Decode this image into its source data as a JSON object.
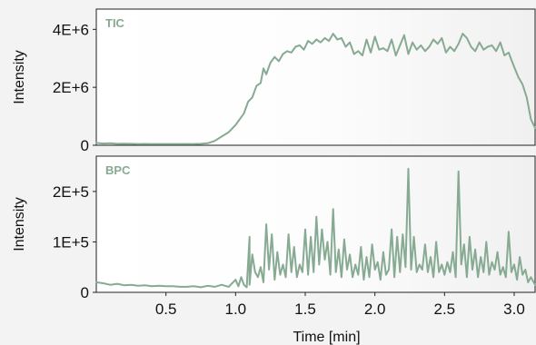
{
  "chart_data": [
    {
      "type": "line",
      "label": "TIC",
      "ylabel": "Intensity",
      "xlabel": "",
      "xlim": [
        0,
        3.15
      ],
      "ylim": [
        0,
        4700000
      ],
      "yticks": [
        {
          "value": 0,
          "label": "0"
        },
        {
          "value": 2000000,
          "label": "2E+6"
        },
        {
          "value": 4000000,
          "label": "4E+6"
        }
      ],
      "xticks": [],
      "color": "#86aa92",
      "x": [
        0.0,
        0.05,
        0.1,
        0.15,
        0.2,
        0.25,
        0.3,
        0.35,
        0.4,
        0.45,
        0.5,
        0.55,
        0.6,
        0.65,
        0.7,
        0.75,
        0.8,
        0.85,
        0.9,
        0.95,
        1.0,
        1.03,
        1.06,
        1.09,
        1.12,
        1.15,
        1.18,
        1.2,
        1.22,
        1.25,
        1.28,
        1.31,
        1.34,
        1.37,
        1.4,
        1.43,
        1.46,
        1.49,
        1.52,
        1.55,
        1.58,
        1.61,
        1.64,
        1.67,
        1.7,
        1.73,
        1.76,
        1.79,
        1.82,
        1.85,
        1.88,
        1.91,
        1.94,
        1.97,
        2.0,
        2.03,
        2.06,
        2.09,
        2.12,
        2.15,
        2.18,
        2.21,
        2.24,
        2.27,
        2.3,
        2.33,
        2.36,
        2.39,
        2.42,
        2.45,
        2.48,
        2.51,
        2.54,
        2.57,
        2.6,
        2.63,
        2.66,
        2.69,
        2.72,
        2.75,
        2.78,
        2.81,
        2.84,
        2.87,
        2.9,
        2.93,
        2.96,
        2.98,
        3.0,
        3.03,
        3.06,
        3.09,
        3.12,
        3.15
      ],
      "y": [
        80000,
        60000,
        70000,
        50000,
        55000,
        50000,
        45000,
        48000,
        45000,
        45000,
        45000,
        45000,
        45000,
        45000,
        45000,
        50000,
        70000,
        150000,
        300000,
        450000,
        700000,
        900000,
        1100000,
        1500000,
        1650000,
        2050000,
        2150000,
        2650000,
        2450000,
        2850000,
        3050000,
        2900000,
        3150000,
        3250000,
        3200000,
        3400000,
        3450000,
        3300000,
        3600000,
        3500000,
        3650000,
        3550000,
        3700000,
        3600000,
        3850000,
        3650000,
        3700000,
        3400000,
        3550000,
        3150000,
        3250000,
        3100000,
        3650000,
        3200000,
        3750000,
        3300000,
        3350000,
        3250000,
        3650000,
        3100000,
        3450000,
        3800000,
        3150000,
        3550000,
        3300000,
        3450000,
        3250000,
        3400000,
        3650000,
        3500000,
        3700000,
        3200000,
        3400000,
        3250000,
        3500000,
        3850000,
        3700000,
        3400000,
        3250000,
        3550000,
        3300000,
        3400000,
        3450000,
        3250000,
        3550000,
        3100000,
        3200000,
        2950000,
        2700000,
        2350000,
        2100000,
        1650000,
        900000,
        600000
      ]
    },
    {
      "type": "line",
      "label": "BPC",
      "ylabel": "Intensity",
      "xlabel": "Time [min]",
      "xlim": [
        0,
        3.15
      ],
      "ylim": [
        0,
        270000
      ],
      "yticks": [
        {
          "value": 0,
          "label": "0"
        },
        {
          "value": 100000,
          "label": "1E+5"
        },
        {
          "value": 200000,
          "label": "2E+5"
        }
      ],
      "xticks": [
        {
          "value": 0.5,
          "label": "0.5"
        },
        {
          "value": 1.0,
          "label": "1.0"
        },
        {
          "value": 1.5,
          "label": "1.5"
        },
        {
          "value": 2.0,
          "label": "2.0"
        },
        {
          "value": 2.5,
          "label": "2.5"
        },
        {
          "value": 3.0,
          "label": "3.0"
        }
      ],
      "color": "#86aa92",
      "x": [
        0.0,
        0.05,
        0.1,
        0.15,
        0.2,
        0.25,
        0.3,
        0.35,
        0.4,
        0.45,
        0.5,
        0.55,
        0.6,
        0.65,
        0.7,
        0.75,
        0.8,
        0.85,
        0.9,
        0.95,
        1.0,
        1.02,
        1.04,
        1.06,
        1.08,
        1.1,
        1.1,
        1.12,
        1.14,
        1.16,
        1.18,
        1.2,
        1.22,
        1.24,
        1.26,
        1.28,
        1.3,
        1.32,
        1.34,
        1.36,
        1.38,
        1.4,
        1.42,
        1.44,
        1.46,
        1.48,
        1.5,
        1.52,
        1.54,
        1.56,
        1.58,
        1.6,
        1.62,
        1.64,
        1.66,
        1.68,
        1.7,
        1.72,
        1.74,
        1.76,
        1.78,
        1.8,
        1.82,
        1.84,
        1.86,
        1.88,
        1.9,
        1.92,
        1.94,
        1.96,
        1.98,
        2.0,
        2.02,
        2.04,
        2.06,
        2.08,
        2.1,
        2.12,
        2.14,
        2.16,
        2.18,
        2.2,
        2.22,
        2.24,
        2.26,
        2.28,
        2.3,
        2.32,
        2.34,
        2.36,
        2.38,
        2.4,
        2.42,
        2.44,
        2.46,
        2.48,
        2.5,
        2.52,
        2.54,
        2.56,
        2.58,
        2.6,
        2.62,
        2.64,
        2.66,
        2.68,
        2.7,
        2.72,
        2.74,
        2.76,
        2.78,
        2.8,
        2.82,
        2.84,
        2.86,
        2.88,
        2.9,
        2.92,
        2.94,
        2.96,
        2.98,
        3.0,
        3.02,
        3.04,
        3.06,
        3.08,
        3.1,
        3.12,
        3.15
      ],
      "y": [
        20000,
        18000,
        15000,
        17000,
        14000,
        15000,
        13000,
        14000,
        12000,
        13000,
        12000,
        12000,
        11000,
        11000,
        12000,
        10000,
        13000,
        11000,
        15000,
        11000,
        25000,
        12000,
        30000,
        15000,
        10000,
        110000,
        15000,
        75000,
        40000,
        30000,
        50000,
        20000,
        135000,
        45000,
        115000,
        25000,
        80000,
        35000,
        55000,
        30000,
        115000,
        40000,
        90000,
        30000,
        55000,
        40000,
        125000,
        35000,
        110000,
        40000,
        150000,
        55000,
        125000,
        65000,
        100000,
        35000,
        165000,
        40000,
        85000,
        30000,
        105000,
        45000,
        75000,
        30000,
        55000,
        35000,
        90000,
        25000,
        70000,
        30000,
        95000,
        45000,
        60000,
        25000,
        80000,
        35000,
        45000,
        125000,
        30000,
        110000,
        40000,
        115000,
        50000,
        245000,
        45000,
        110000,
        40000,
        55000,
        45000,
        95000,
        40000,
        70000,
        30000,
        100000,
        40000,
        55000,
        35000,
        60000,
        40000,
        80000,
        30000,
        240000,
        55000,
        95000,
        30000,
        110000,
        45000,
        85000,
        30000,
        70000,
        40000,
        100000,
        35000,
        60000,
        45000,
        80000,
        35000,
        50000,
        30000,
        120000,
        40000,
        55000,
        25000,
        70000,
        35000,
        45000,
        20000,
        30000,
        15000
      ]
    }
  ]
}
